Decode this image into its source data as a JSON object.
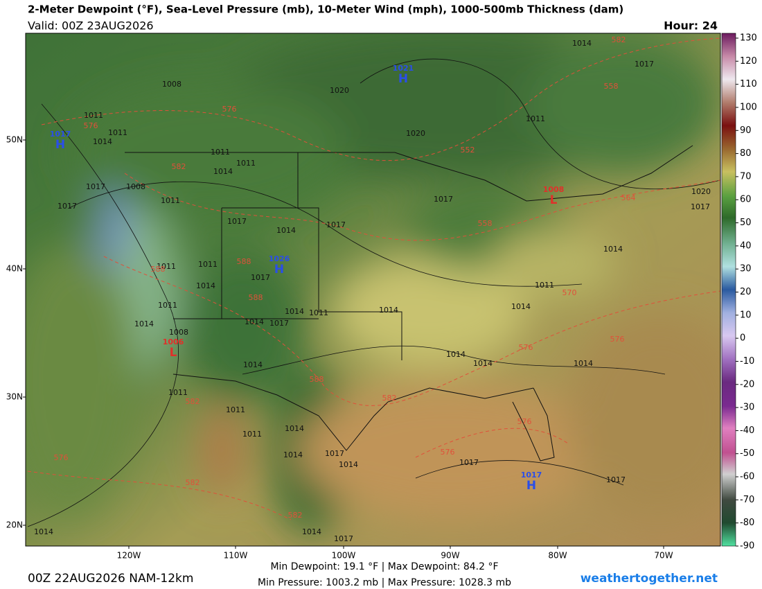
{
  "header": {
    "title": "2-Meter Dewpoint (°F), Sea-Level Pressure (mb), 10-Meter Wind (mph), 1000-500mb Thickness (dam)",
    "valid": "Valid: 00Z 23AUG2026",
    "hour": "Hour: 24"
  },
  "map": {
    "lat_labels": [
      "50N",
      "40N",
      "30N",
      "20N"
    ],
    "lon_labels": [
      "120W",
      "110W",
      "100W",
      "90W",
      "80W",
      "70W"
    ],
    "centers": [
      {
        "kind": "H",
        "value": "1021"
      },
      {
        "kind": "H",
        "value": "1017"
      },
      {
        "kind": "H",
        "value": "1026"
      },
      {
        "kind": "H",
        "value": "1017"
      },
      {
        "kind": "L",
        "value": "1008"
      },
      {
        "kind": "L",
        "value": "1006"
      }
    ],
    "isobar_labels": [
      "1014",
      "1017",
      "1008",
      "1011",
      "1011",
      "1014",
      "1011",
      "1011",
      "1014",
      "1017",
      "1008",
      "1011",
      "1017",
      "1017",
      "1014",
      "1017",
      "1017",
      "1011",
      "1020",
      "1017",
      "1014",
      "1011",
      "1011",
      "1014",
      "1017",
      "1011",
      "1014",
      "1014",
      "1014",
      "1011",
      "1011",
      "1014",
      "1008",
      "1014",
      "1017",
      "1014",
      "1014",
      "1014",
      "1014",
      "1011",
      "1011",
      "1011",
      "1014",
      "1014",
      "1017",
      "1014",
      "1017",
      "1014",
      "1017",
      "1014",
      "1017",
      "1020",
      "1020"
    ],
    "thickness_labels": [
      "582",
      "558",
      "576",
      "576",
      "552",
      "582",
      "564",
      "558",
      "588",
      "588",
      "588",
      "570",
      "576",
      "576",
      "582",
      "588",
      "582",
      "576",
      "576",
      "576",
      "582",
      "582"
    ]
  },
  "colorbar": {
    "ticks": [
      130,
      120,
      110,
      100,
      90,
      80,
      70,
      60,
      50,
      40,
      30,
      20,
      10,
      0,
      -10,
      -20,
      -30,
      -40,
      -50,
      -60,
      -70,
      -80,
      -90
    ]
  },
  "footer": {
    "run": "00Z 22AUG2026 NAM-12km",
    "dewpoint_stats": "Min Dewpoint: 19.1 °F | Max Dewpoint: 84.2 °F",
    "pressure_stats": "Min Pressure: 1003.2 mb | Max Pressure: 1028.3 mb",
    "brand": "weathertogether.net"
  }
}
